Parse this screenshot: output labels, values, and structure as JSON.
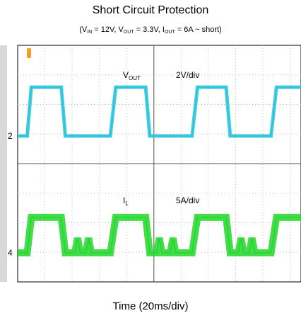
{
  "title": "Short Circuit Protection",
  "subtitle": {
    "vin_label": "V",
    "vin_sub": "IN",
    "vin_val": " = 12V, ",
    "vout_label": "V",
    "vout_sub": "OUT",
    "vout_val": " = 3.3V, ",
    "iout_label": "I",
    "iout_sub": "OUT",
    "iout_val": " = 6A ~ short)",
    "open": "("
  },
  "xlabel": "Time (20ms/div)",
  "colors": {
    "ch_vout": "#27c4da",
    "ch_il": "#22d62b",
    "grid": "#bfbfbf",
    "trigger": "#f0a020"
  },
  "chart_data": {
    "type": "line",
    "grid": true,
    "x_divisions": 10,
    "y_divisions": 8,
    "series": [
      {
        "name": "VOUT",
        "name_main": "V",
        "name_sub": "OUT",
        "scale": "2V/div",
        "marker": "2",
        "x": [
          0,
          0.35,
          0.5,
          1.6,
          1.75,
          3.4,
          3.6,
          4.7,
          4.85,
          6.4,
          6.6,
          7.65,
          7.8,
          9.3,
          9.5,
          10.4
        ],
        "y": [
          0,
          0,
          3.3,
          3.3,
          0,
          0,
          3.3,
          3.3,
          0,
          0,
          3.3,
          3.3,
          0,
          0,
          3.3,
          3.3
        ]
      },
      {
        "name": "IL",
        "name_main": "I",
        "name_sub": "L",
        "scale": "5A/div",
        "marker": "4",
        "x": [
          0,
          0.35,
          0.5,
          1.6,
          1.75,
          2.1,
          2.2,
          2.3,
          2.5,
          2.6,
          2.7,
          3.4,
          3.6,
          4.7,
          4.85,
          5.1,
          5.2,
          5.3,
          5.6,
          5.7,
          5.8,
          6.4,
          6.6,
          7.65,
          7.8,
          8.1,
          8.2,
          8.3,
          8.5,
          8.6,
          8.7,
          9.3,
          9.5,
          10.4
        ],
        "y": [
          0,
          0,
          6,
          6,
          0,
          0,
          2.5,
          0,
          0,
          2.5,
          0,
          0,
          6,
          6,
          0,
          0,
          2.5,
          0,
          0,
          2.5,
          0,
          0,
          6,
          6,
          0,
          0,
          2.5,
          0,
          0,
          2.5,
          0,
          0,
          6,
          6
        ]
      }
    ]
  }
}
